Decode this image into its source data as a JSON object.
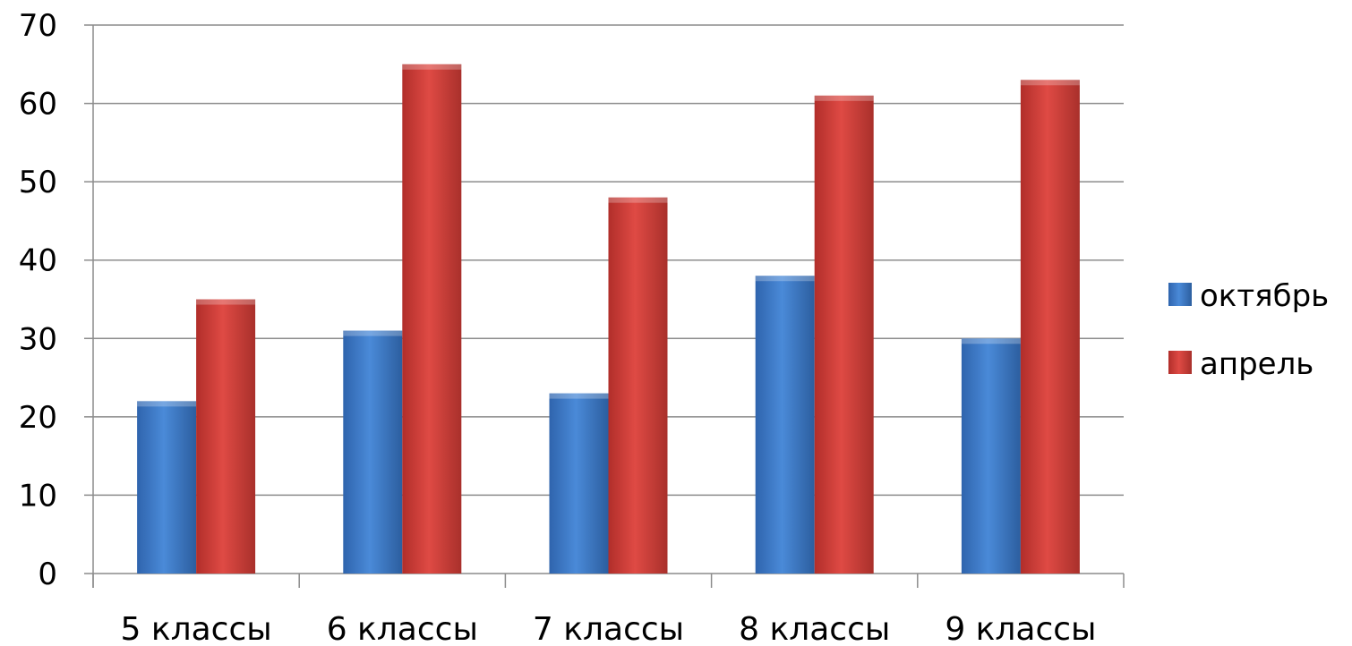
{
  "chart_data": {
    "type": "bar",
    "title": "",
    "xlabel": "",
    "ylabel": "",
    "categories": [
      "5 классы",
      "6 классы",
      "7 классы",
      "8 классы",
      "9 классы"
    ],
    "series": [
      {
        "name": "октябрь",
        "values": [
          22,
          31,
          23,
          38,
          30
        ],
        "color": "#3d79c8"
      },
      {
        "name": "апрель",
        "values": [
          35,
          65,
          48,
          61,
          63
        ],
        "color": "#cc3b36"
      }
    ],
    "ylim": [
      0,
      70
    ],
    "yticks": [
      "0",
      "10",
      "20",
      "30",
      "40",
      "50",
      "60",
      "70"
    ],
    "grid": true,
    "legend_position": "right"
  }
}
